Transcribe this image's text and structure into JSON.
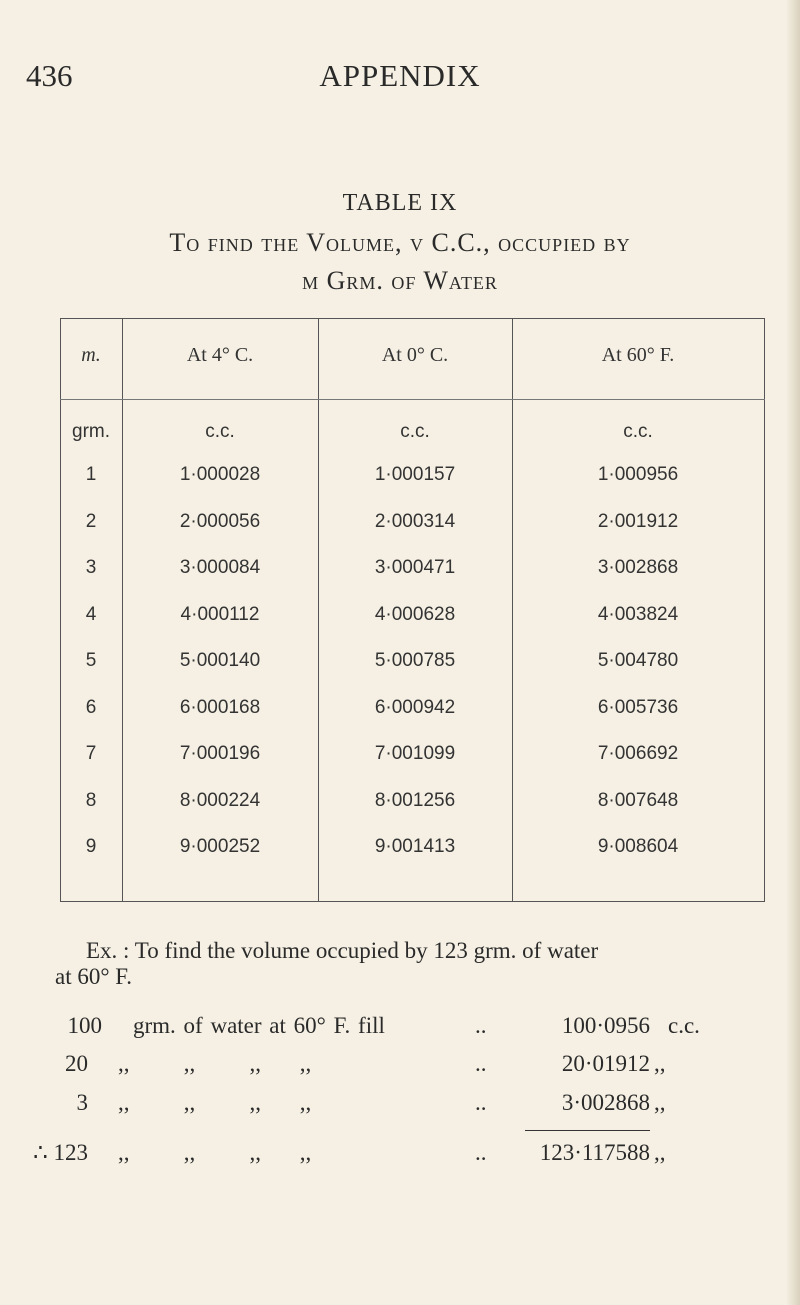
{
  "page_number": "436",
  "running_head": "APPENDIX",
  "table_label": "TABLE IX",
  "title_line1": "To find the Volume, v C.C., occupied by",
  "title_line2": "m Grm. of Water",
  "table": {
    "headers": [
      "m.",
      "At 4° C.",
      "At 0° C.",
      "At 60° F."
    ],
    "units": [
      "grm.",
      "c.c.",
      "c.c.",
      "c.c."
    ],
    "rows": [
      [
        "1",
        "1·000028",
        "1·000157",
        "1·000956"
      ],
      [
        "2",
        "2·000056",
        "2·000314",
        "2·001912"
      ],
      [
        "3",
        "3·000084",
        "3·000471",
        "3·002868"
      ],
      [
        "4",
        "4·000112",
        "4·000628",
        "4·003824"
      ],
      [
        "5",
        "5·000140",
        "5·000785",
        "5·004780"
      ],
      [
        "6",
        "6·000168",
        "6·000942",
        "6·005736"
      ],
      [
        "7",
        "7·000196",
        "7·001099",
        "7·006692"
      ],
      [
        "8",
        "8·000224",
        "8·001256",
        "8·007648"
      ],
      [
        "9",
        "9·000252",
        "9·001413",
        "9·008604"
      ]
    ]
  },
  "example": {
    "line1": "Ex. : To find the volume occupied by 123 grm. of water",
    "line2": "at 60° F.",
    "steps": [
      {
        "qty": "100",
        "desc": "grm. of water at 60° F. fill",
        "dots": "..",
        "result": "100·0956",
        "unit": "c.c."
      },
      {
        "qty": "20",
        "desc": ",,       ,,       ,,     ,,",
        "dots": "..",
        "result": "20·01912",
        "unit": ",,"
      },
      {
        "qty": "3",
        "desc": ",,       ,,       ,,     ,,",
        "dots": "..",
        "result": "3·002868",
        "unit": ",,"
      },
      {
        "qty": "∴ 123",
        "desc": ",,       ,,       ,,     ,,",
        "dots": "..",
        "result": "123·117588",
        "unit": ",,"
      }
    ]
  }
}
